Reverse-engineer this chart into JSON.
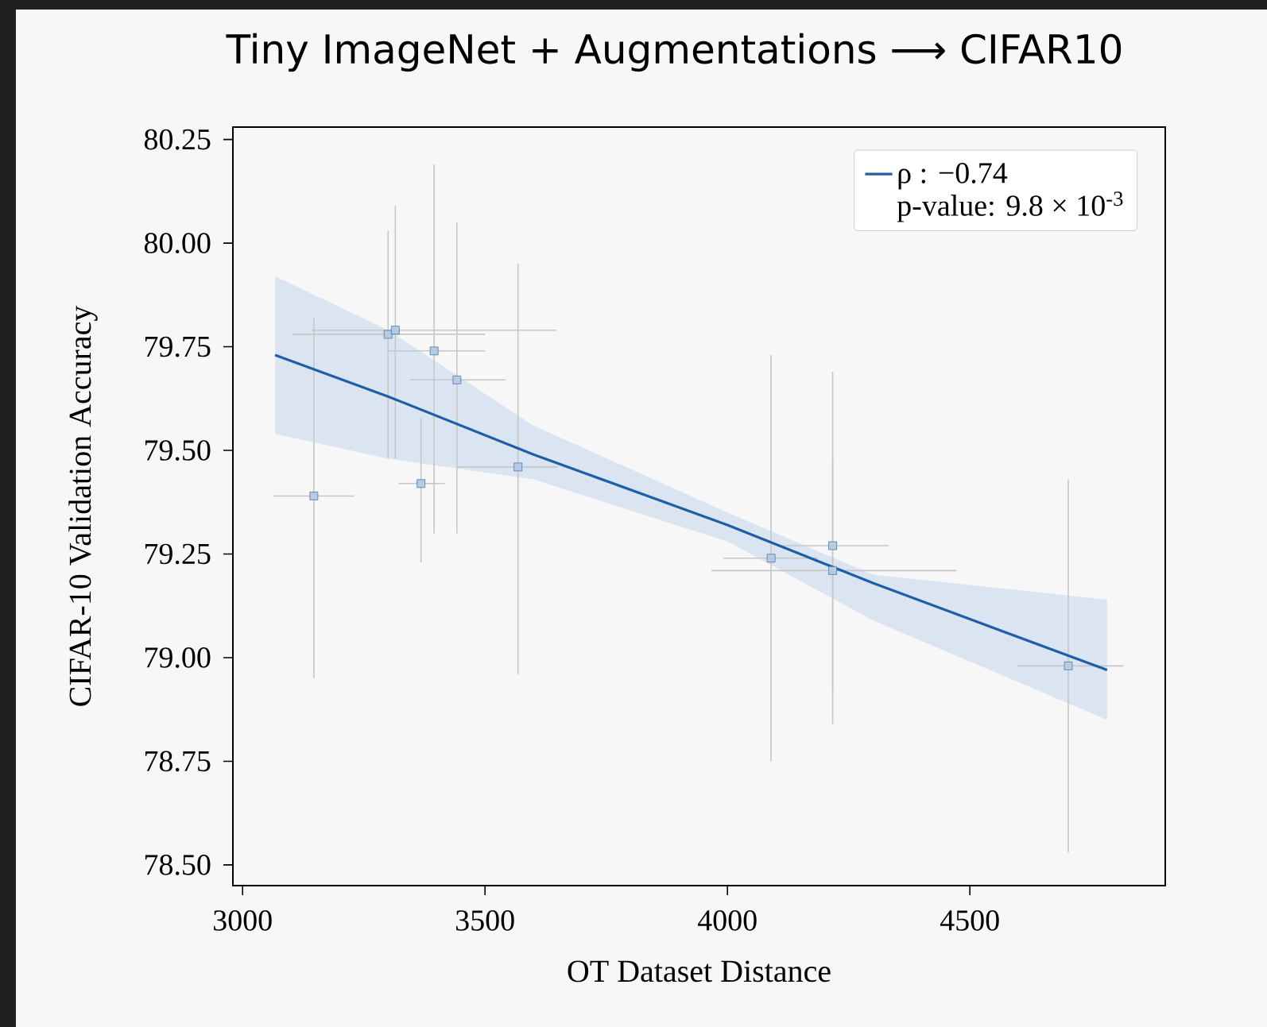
{
  "chart_data": {
    "type": "scatter",
    "title": "Tiny ImageNet + Augmentations ⟶ CIFAR10",
    "xlabel": "OT Dataset Distance",
    "ylabel": "CIFAR-10 Validation Accuracy",
    "xlim": [
      2980,
      4903
    ],
    "ylim": [
      78.45,
      80.28
    ],
    "xticks": [
      3000,
      3500,
      4000,
      4500
    ],
    "yticks": [
      {
        "value": 78.5,
        "label": "78.50"
      },
      {
        "value": 78.75,
        "label": "78.75"
      },
      {
        "value": 79.0,
        "label": "79.00"
      },
      {
        "value": 79.25,
        "label": "79.25"
      },
      {
        "value": 79.5,
        "label": "79.50"
      },
      {
        "value": 79.75,
        "label": "79.75"
      },
      {
        "value": 80.0,
        "label": "80.00"
      },
      {
        "value": 80.25,
        "label": "80.25"
      }
    ],
    "legend": "top right",
    "annotations": [
      "p-value: 9.8 × 10$^{-3}$"
    ],
    "series": [
      {
        "color": "#4a7ab0",
        "marker": "square",
        "x": [
          3147,
          3300,
          3315,
          3395,
          3442,
          3368,
          3568,
          4090,
          4217,
          4217,
          4703
        ],
        "values": [
          79.39,
          79.78,
          79.79,
          79.74,
          79.67,
          79.42,
          79.46,
          79.24,
          79.27,
          79.21,
          78.98
        ],
        "errors": [
          [
            78.95,
            79.82
          ],
          [
            79.48,
            80.03
          ],
          [
            79.48,
            80.09
          ],
          [
            79.3,
            80.19
          ],
          [
            79.3,
            80.05
          ],
          [
            79.23,
            79.58
          ],
          [
            78.96,
            79.95
          ],
          [
            78.75,
            79.73
          ],
          [
            78.92,
            79.48
          ],
          [
            78.84,
            79.69
          ],
          [
            78.53,
            79.43
          ]
        ],
        "xerrors": [
          [
            3063,
            3230
          ],
          [
            3103,
            3500
          ],
          [
            3142,
            3647
          ],
          [
            3300,
            3500
          ],
          [
            3345,
            3542
          ],
          [
            3322,
            3417
          ],
          [
            3442,
            3650
          ],
          [
            3992,
            4187
          ],
          [
            4108,
            4333
          ],
          [
            3967,
            4472
          ],
          [
            4597,
            4817
          ]
        ]
      },
      {
        "type": "line",
        "name": "ρ : −0.74",
        "color": "#1f5fa8",
        "x": [
          3067,
          3300,
          3600,
          4000,
          4300,
          4783
        ],
        "values": [
          79.73,
          79.63,
          79.49,
          79.32,
          79.18,
          78.97
        ],
        "lower": [
          79.54,
          79.48,
          79.43,
          79.28,
          79.09,
          78.85
        ],
        "upper": [
          79.92,
          79.79,
          79.56,
          79.35,
          79.2,
          79.14
        ]
      }
    ]
  }
}
